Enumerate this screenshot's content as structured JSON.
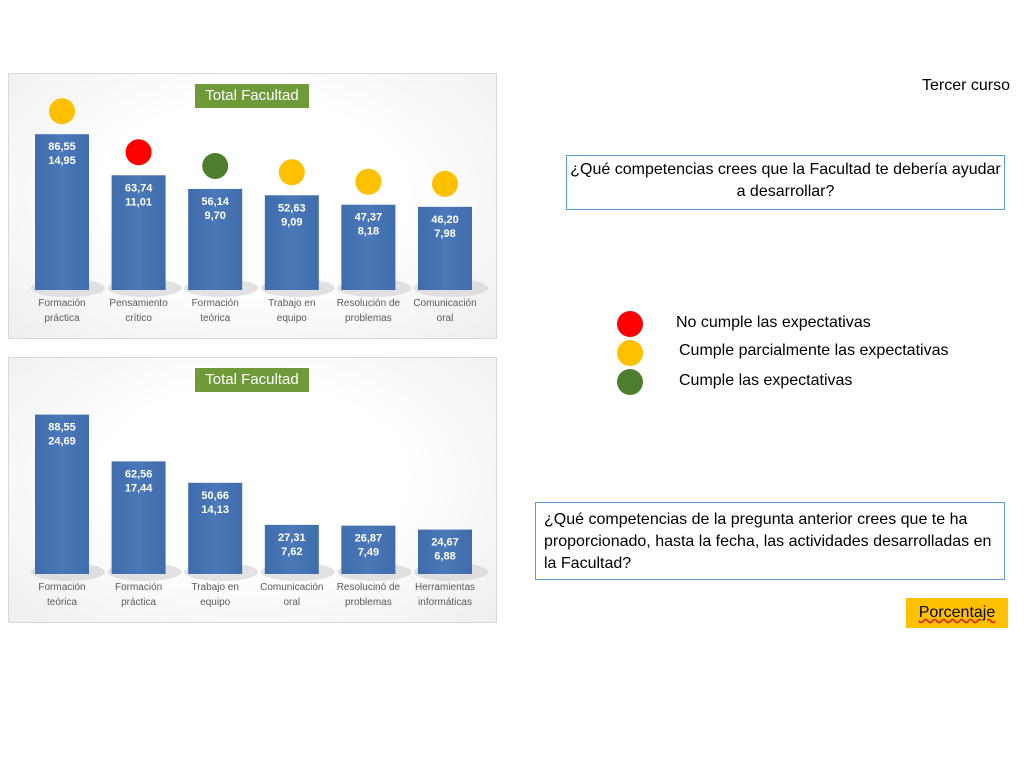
{
  "course_label": "Tercer curso",
  "question1": "¿Qué competencias crees que la Facultad te debería ayudar a desarrollar?",
  "question2": "¿Qué competencias de la pregunta anterior crees que te ha proporcionado, hasta la fecha, las actividades desarrolladas en la Facultad?",
  "legend": [
    {
      "label": "No cumple las expectativas",
      "color": "#ff0000"
    },
    {
      "label": "Cumple parcialmente las expectativas",
      "color": "#ffc000"
    },
    {
      "label": "Cumple las expectativas",
      "color": "#4e7d2e"
    }
  ],
  "percentage_label": "Porcentaje",
  "chart_data": [
    {
      "type": "bar",
      "title": "Total Facultad",
      "categories": [
        [
          "Formación",
          "práctica"
        ],
        [
          "Pensamiento",
          "crítico"
        ],
        [
          "Formación",
          "teórica"
        ],
        [
          "Trabajo en",
          "equipo"
        ],
        [
          "Resolución de",
          "problemas"
        ],
        [
          "Comunicación",
          "oral"
        ]
      ],
      "values": [
        86.55,
        63.74,
        56.14,
        52.63,
        47.37,
        46.2
      ],
      "value_labels": [
        "86,55",
        "63,74",
        "56,14",
        "52,63",
        "47,37",
        "46,20"
      ],
      "percent_labels": [
        "14,95",
        "11,01",
        "9,70",
        "9,09",
        "8,18",
        "7,98"
      ],
      "indicators": [
        "#ffc000",
        "#ff0000",
        "#4e7d2e",
        "#ffc000",
        "#ffc000",
        "#ffc000"
      ],
      "ylim": [
        0,
        100
      ],
      "bar_color": "#4a78b8"
    },
    {
      "type": "bar",
      "title": "Total Facultad",
      "categories": [
        [
          "Formación",
          "teórica"
        ],
        [
          "Formación",
          "práctica"
        ],
        [
          "Trabajo en",
          "equipo"
        ],
        [
          "Comunicación",
          "oral"
        ],
        [
          "Resolucinó de",
          "problemas"
        ],
        [
          "Herramientas",
          "informáticas"
        ]
      ],
      "values": [
        88.55,
        62.56,
        50.66,
        27.31,
        26.87,
        24.67
      ],
      "value_labels": [
        "88,55",
        "62,56",
        "50,66",
        "27,31",
        "26,87",
        "24,67"
      ],
      "percent_labels": [
        "24,69",
        "17,44",
        "14,13",
        "7,62",
        "7,49",
        "6,88"
      ],
      "indicators": [],
      "ylim": [
        0,
        100
      ],
      "bar_color": "#4a78b8"
    }
  ]
}
